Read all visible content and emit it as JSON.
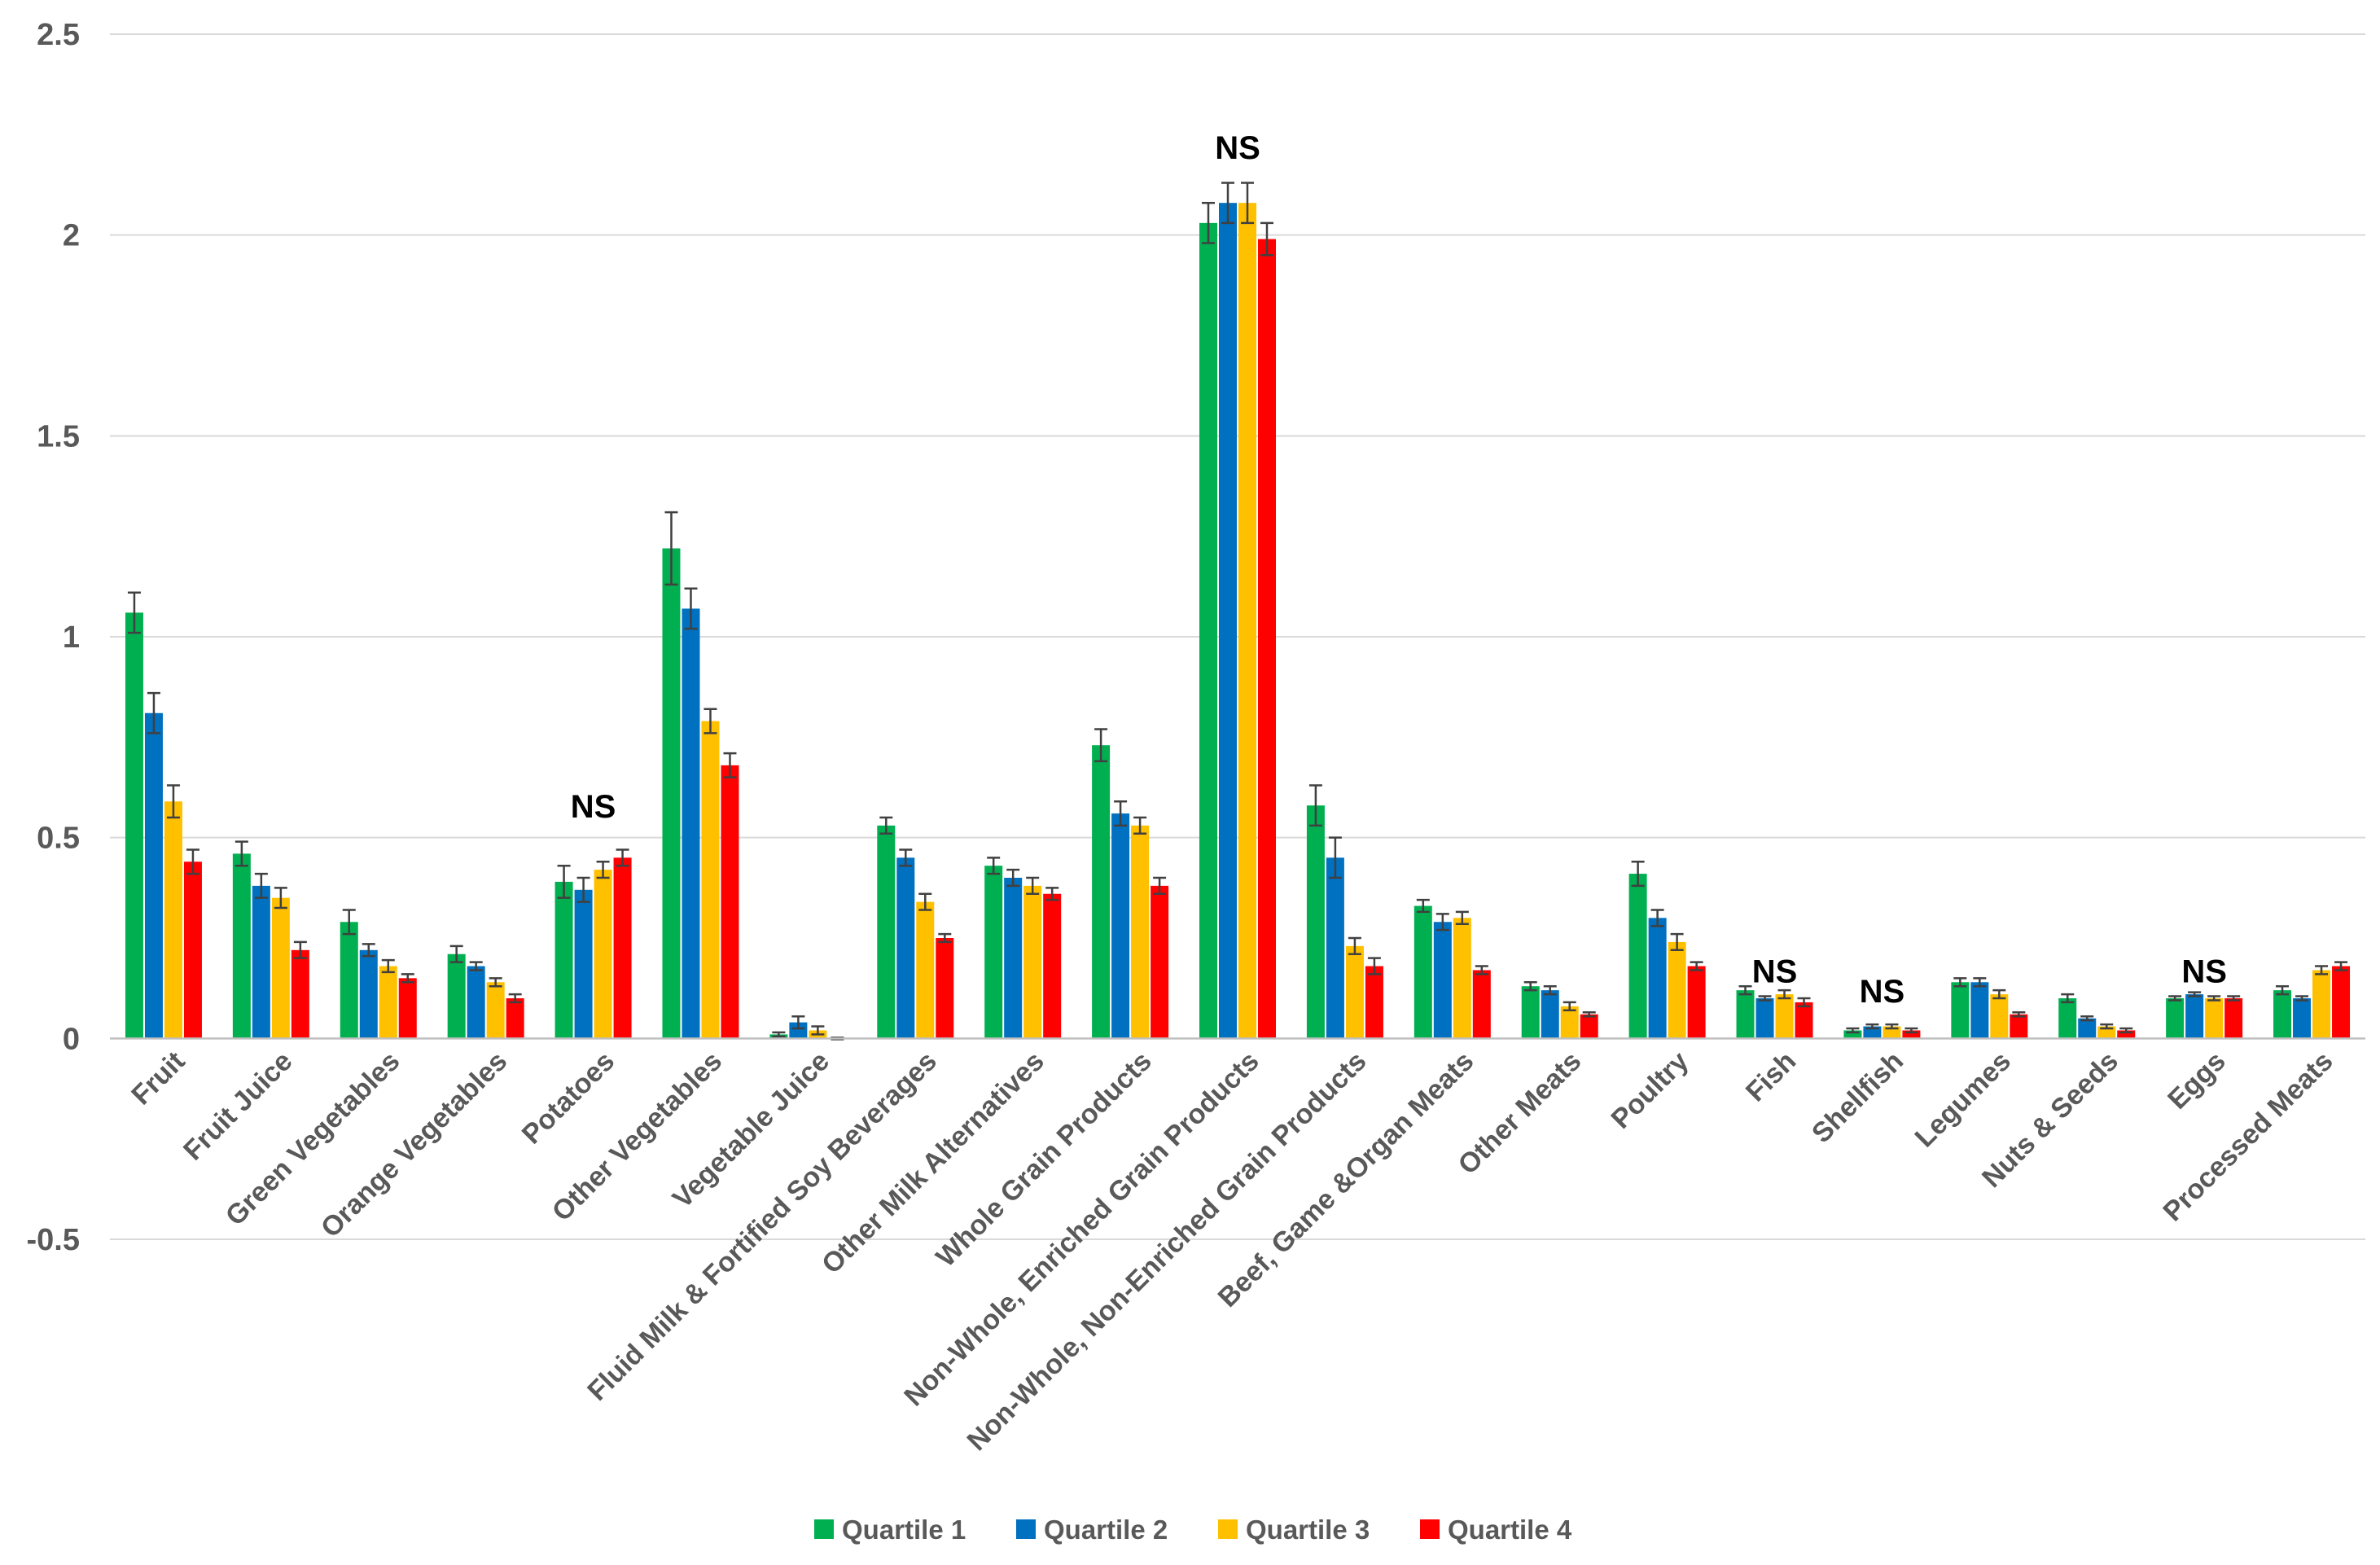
{
  "chart_data": {
    "type": "bar",
    "title": "",
    "xlabel": "",
    "ylabel": "",
    "ylim": [
      -0.5,
      2.5
    ],
    "yticks": [
      "-0.5",
      "0",
      "0.5",
      "1",
      "1.5",
      "2",
      "2.5"
    ],
    "ytick_values": [
      -0.5,
      0,
      0.5,
      1,
      1.5,
      2,
      2.5
    ],
    "grid": true,
    "legend_position": "bottom",
    "categories": [
      "Fruit",
      "Fruit Juice",
      "Green Vegetables",
      "Orange Vegetables",
      "Potatoes",
      "Other Vegetables",
      "Vegetable Juice",
      "Fluid Milk & Fortified Soy Beverages",
      "Other Milk Alternatives",
      "Whole Grain Products",
      "Non-Whole, Enriched Grain Products",
      "Non-Whole, Non-Enriched Grain Products",
      "Beef, Game &Organ Meats",
      "Other Meats",
      "Poultry",
      "Fish",
      "Shellfish",
      "Legumes",
      "Nuts & Seeds",
      "Eggs",
      "Processed Meats"
    ],
    "series": [
      {
        "name": "Quartile 1",
        "color": "#00b050",
        "values": [
          1.06,
          0.46,
          0.29,
          0.21,
          0.39,
          1.22,
          0.01,
          0.53,
          0.43,
          0.73,
          2.03,
          0.58,
          0.33,
          0.13,
          0.41,
          0.12,
          0.02,
          0.14,
          0.1,
          0.1,
          0.12
        ],
        "errors": [
          0.05,
          0.03,
          0.03,
          0.02,
          0.04,
          0.09,
          0.005,
          0.02,
          0.02,
          0.04,
          0.05,
          0.05,
          0.015,
          0.01,
          0.03,
          0.01,
          0.005,
          0.01,
          0.01,
          0.005,
          0.01
        ]
      },
      {
        "name": "Quartile 2",
        "color": "#0070c0",
        "values": [
          0.81,
          0.38,
          0.22,
          0.18,
          0.37,
          1.07,
          0.04,
          0.45,
          0.4,
          0.56,
          2.08,
          0.45,
          0.29,
          0.12,
          0.3,
          0.1,
          0.03,
          0.14,
          0.05,
          0.11,
          0.1
        ],
        "errors": [
          0.05,
          0.03,
          0.015,
          0.01,
          0.03,
          0.05,
          0.015,
          0.02,
          0.02,
          0.03,
          0.05,
          0.05,
          0.02,
          0.01,
          0.02,
          0.005,
          0.005,
          0.01,
          0.005,
          0.005,
          0.005
        ]
      },
      {
        "name": "Quartile 3",
        "color": "#ffc000",
        "values": [
          0.59,
          0.35,
          0.18,
          0.14,
          0.42,
          0.79,
          0.02,
          0.34,
          0.38,
          0.53,
          2.08,
          0.23,
          0.3,
          0.08,
          0.24,
          0.11,
          0.03,
          0.11,
          0.03,
          0.1,
          0.17
        ],
        "errors": [
          0.04,
          0.025,
          0.015,
          0.01,
          0.02,
          0.03,
          0.01,
          0.02,
          0.02,
          0.02,
          0.05,
          0.02,
          0.015,
          0.01,
          0.02,
          0.01,
          0.005,
          0.01,
          0.005,
          0.005,
          0.01
        ]
      },
      {
        "name": "Quartile 4",
        "color": "#ff0000",
        "values": [
          0.44,
          0.22,
          0.15,
          0.1,
          0.45,
          0.68,
          0.0,
          0.25,
          0.36,
          0.38,
          1.99,
          0.18,
          0.17,
          0.06,
          0.18,
          0.09,
          0.02,
          0.06,
          0.02,
          0.1,
          0.18
        ],
        "errors": [
          0.03,
          0.02,
          0.01,
          0.01,
          0.02,
          0.03,
          0.002,
          0.01,
          0.015,
          0.02,
          0.04,
          0.02,
          0.01,
          0.005,
          0.01,
          0.01,
          0.005,
          0.005,
          0.005,
          0.005,
          0.01
        ]
      }
    ],
    "annotations": [
      {
        "category_index": 4,
        "text": "NS",
        "at_value": 0.55
      },
      {
        "category_index": 10,
        "text": "NS",
        "at_value": 2.19
      },
      {
        "category_index": 15,
        "text": "NS",
        "at_value": 0.14
      },
      {
        "category_index": 16,
        "text": "NS",
        "at_value": 0.09
      },
      {
        "category_index": 19,
        "text": "NS",
        "at_value": 0.14
      }
    ]
  }
}
